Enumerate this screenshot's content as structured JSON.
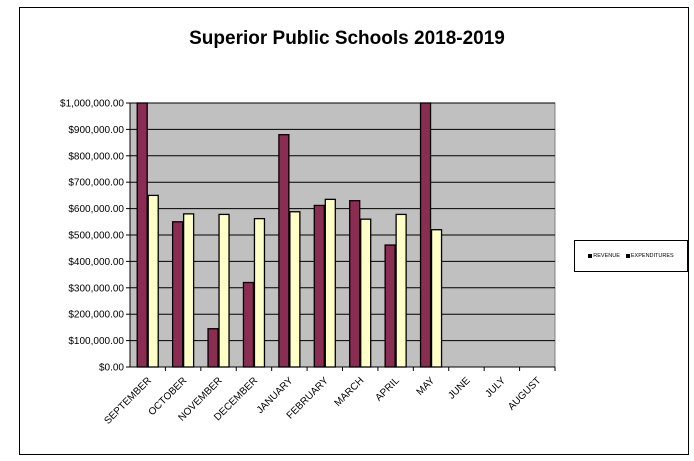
{
  "chart_data": {
    "type": "bar",
    "title": "Superior Public Schools 2018-2019",
    "xlabel": "",
    "ylabel": "",
    "categories": [
      "SEPTEMBER",
      "OCTOBER",
      "NOVEMBER",
      "DECEMBER",
      "JANUARY",
      "FEBRUARY",
      "MARCH",
      "APRIL",
      "MAY",
      "JUNE",
      "JULY",
      "AUGUST"
    ],
    "series": [
      {
        "name": "REVENUE",
        "color": "#8b2d52",
        "values": [
          1000000,
          550000,
          145000,
          320000,
          880000,
          612000,
          630000,
          462000,
          1000000,
          null,
          null,
          null
        ]
      },
      {
        "name": "EXPENDITURES",
        "color": "#ffffc8",
        "values": [
          650000,
          580000,
          578000,
          562000,
          588000,
          635000,
          560000,
          578000,
          520000,
          null,
          null,
          null
        ]
      }
    ],
    "ylim": [
      0,
      1000000
    ],
    "y_ticks": [
      "$0.00",
      "$100,000.00",
      "$200,000.00",
      "$300,000.00",
      "$400,000.00",
      "$500,000.00",
      "$600,000.00",
      "$700,000.00",
      "$800,000.00",
      "$900,000.00",
      "$1,000,000.00"
    ],
    "grid": true,
    "legend_position": "right",
    "plot_background": "#c0c0c0"
  }
}
